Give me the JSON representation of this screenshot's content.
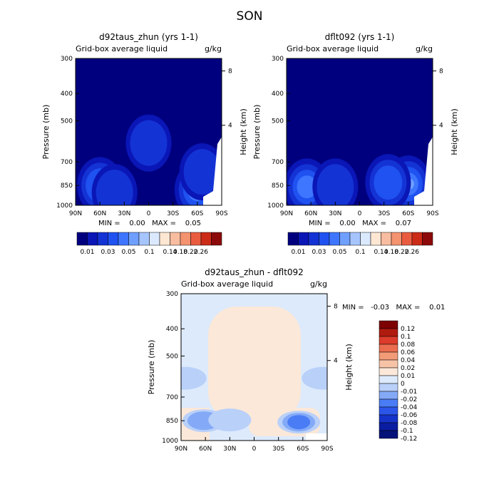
{
  "figure": {
    "title": "SON"
  },
  "colors": {
    "scale12": [
      "#00007f",
      "#0a16b6",
      "#1433d5",
      "#1f52f0",
      "#3f76ff",
      "#6fa0ff",
      "#a6c5ff",
      "#dbe9ff",
      "#fde7d3",
      "#f8bda0",
      "#f4936f",
      "#ea5c40",
      "#cc2b18",
      "#8c0a0a"
    ],
    "scale3": [
      "#051279",
      "#0a1da1",
      "#1533c9",
      "#2c55ea",
      "#4a7cf5",
      "#84aaf7",
      "#b9d0f9",
      "#ddeafc",
      "#fbe8d8",
      "#f7c3a7",
      "#f29b77",
      "#eb6d4f",
      "#dc3c2b",
      "#b01b10",
      "#7d0202"
    ]
  },
  "chart_data": [
    {
      "type": "heatmap",
      "title": "d92taus_zhun (yrs 1-1)",
      "subtitle": "Grid-box average liquid",
      "units": "g/kg",
      "ylabel": "Pressure (mb)",
      "y2label": "Height (km)",
      "x_ticks": [
        "90N",
        "60N",
        "30N",
        "0",
        "30S",
        "60S",
        "90S"
      ],
      "y_ticks": [
        "300",
        "400",
        "500",
        "700",
        "850",
        "1000"
      ],
      "y2_ticks": [
        "8",
        "4"
      ],
      "stats": {
        "label": "MIN =    0.00   MAX =    0.05",
        "min": 0.0,
        "max": 0.05
      },
      "colorbar": [
        "0.01",
        "0.03",
        "0.05",
        "0.1",
        "0.14",
        "0.18",
        "0.22",
        "0.26"
      ],
      "xlim": [
        90,
        -90
      ],
      "ylim": [
        1000,
        300
      ],
      "field": [
        {
          "x": 60,
          "y": 850,
          "level": 2
        },
        {
          "x": 42,
          "y": 900,
          "level": 1
        },
        {
          "x": 0,
          "y": 600,
          "level": 1
        },
        {
          "x": -60,
          "y": 880,
          "level": 3
        },
        {
          "x": -66,
          "y": 760,
          "level": 1
        }
      ]
    },
    {
      "type": "heatmap",
      "title": "dflt092 (yrs 1-1)",
      "subtitle": "Grid-box average liquid",
      "units": "g/kg",
      "ylabel": "Pressure (mb)",
      "y2label": "Height (km)",
      "x_ticks": [
        "90N",
        "60N",
        "30N",
        "0",
        "30S",
        "60S",
        "90S"
      ],
      "y_ticks": [
        "300",
        "400",
        "500",
        "700",
        "850",
        "1000"
      ],
      "y2_ticks": [
        "8",
        "4"
      ],
      "stats": {
        "label": "MIN =    0.00   MAX =    0.07",
        "min": 0.0,
        "max": 0.07
      },
      "colorbar": [
        "0.01",
        "0.03",
        "0.05",
        "0.1",
        "0.14",
        "0.18",
        "0.22",
        "0.26"
      ],
      "xlim": [
        90,
        -90
      ],
      "ylim": [
        1000,
        300
      ],
      "field": [
        {
          "x": 65,
          "y": 860,
          "level": 3
        },
        {
          "x": 30,
          "y": 860,
          "level": 1
        },
        {
          "x": -60,
          "y": 840,
          "level": 5
        },
        {
          "x": -35,
          "y": 830,
          "level": 2
        }
      ]
    },
    {
      "type": "heatmap",
      "title": "d92taus_zhun - dflt092",
      "subtitle": "Grid-box average liquid",
      "units": "g/kg",
      "ylabel": "Pressure (mb)",
      "y2label": "Height (km)",
      "x_ticks": [
        "90N",
        "60N",
        "30N",
        "0",
        "30S",
        "60S",
        "90S"
      ],
      "y_ticks": [
        "300",
        "400",
        "500",
        "700",
        "850",
        "1000"
      ],
      "y2_ticks": [
        "8",
        "4"
      ],
      "stats": {
        "label": "MIN =   -0.03   MAX =    0.01",
        "min": -0.03,
        "max": 0.01
      },
      "colorbar": [
        "0.12",
        "0.1",
        "0.08",
        "0.06",
        "0.04",
        "0.02",
        "0.01",
        "0",
        "-0.01",
        "-0.02",
        "-0.04",
        "-0.06",
        "-0.08",
        "-0.1",
        "-0.12"
      ],
      "xlim": [
        90,
        -90
      ],
      "ylim": [
        1000,
        300
      ],
      "field": [
        {
          "x": -55,
          "y": 860,
          "level": -3
        },
        {
          "x": 62,
          "y": 850,
          "level": -2
        },
        {
          "x": 30,
          "y": 845,
          "level": -1
        },
        {
          "x": 85,
          "y": 600,
          "level": -1
        },
        {
          "x": -85,
          "y": 600,
          "level": -1
        }
      ]
    }
  ]
}
